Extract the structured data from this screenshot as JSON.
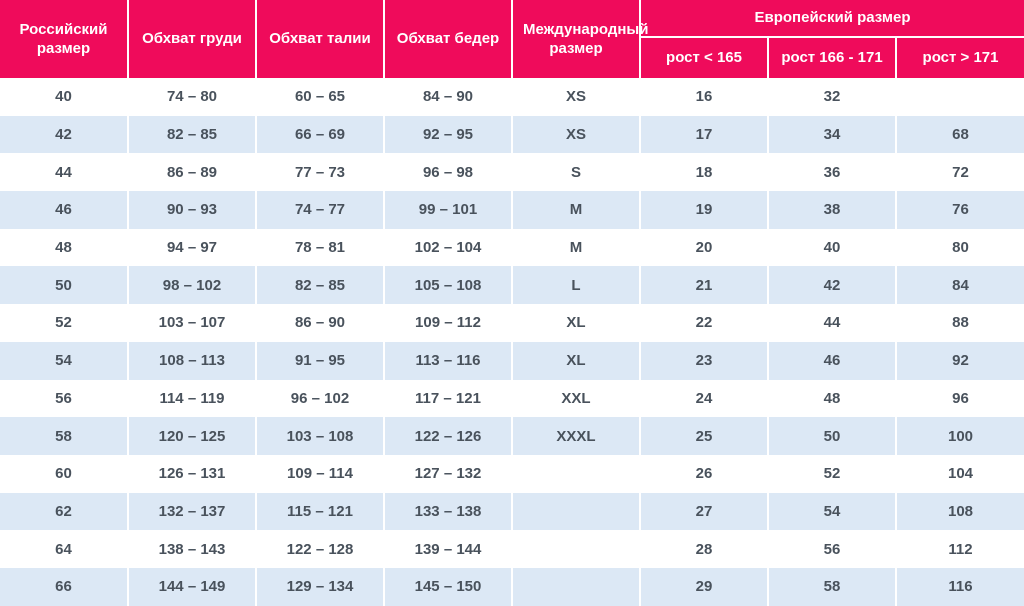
{
  "colors": {
    "header_bg": "#EF0B5B",
    "header_text": "#FFFFFF",
    "row_alt_bg": "#DCE8F5",
    "body_text": "#49525C",
    "separator": "#FFFFFF"
  },
  "table": {
    "headers": {
      "russian_size": "Российский размер",
      "chest": "Обхват груди",
      "waist": "Обхват талии",
      "hips": "Обхват бедер",
      "international_size": "Международный размер",
      "european_size": "Европейский размер",
      "height_lt_165": "рост < 165",
      "height_166_171": "рост 166 - 171",
      "height_gt_171": "рост > 171"
    },
    "rows": [
      {
        "russian_size": "40",
        "chest": "74 – 80",
        "waist": "60 – 65",
        "hips": "84 – 90",
        "international_size": "XS",
        "height_lt_165": "16",
        "height_166_171": "32",
        "height_gt_171": ""
      },
      {
        "russian_size": "42",
        "chest": "82 – 85",
        "waist": "66 – 69",
        "hips": "92 – 95",
        "international_size": "XS",
        "height_lt_165": "17",
        "height_166_171": "34",
        "height_gt_171": "68"
      },
      {
        "russian_size": "44",
        "chest": "86 – 89",
        "waist": "77 – 73",
        "hips": "96 – 98",
        "international_size": "S",
        "height_lt_165": "18",
        "height_166_171": "36",
        "height_gt_171": "72"
      },
      {
        "russian_size": "46",
        "chest": "90 – 93",
        "waist": "74 – 77",
        "hips": "99 – 101",
        "international_size": "M",
        "height_lt_165": "19",
        "height_166_171": "38",
        "height_gt_171": "76"
      },
      {
        "russian_size": "48",
        "chest": "94 – 97",
        "waist": "78 – 81",
        "hips": "102 – 104",
        "international_size": "M",
        "height_lt_165": "20",
        "height_166_171": "40",
        "height_gt_171": "80"
      },
      {
        "russian_size": "50",
        "chest": "98 – 102",
        "waist": "82 – 85",
        "hips": "105 – 108",
        "international_size": "L",
        "height_lt_165": "21",
        "height_166_171": "42",
        "height_gt_171": "84"
      },
      {
        "russian_size": "52",
        "chest": "103 – 107",
        "waist": "86 – 90",
        "hips": "109 – 112",
        "international_size": "XL",
        "height_lt_165": "22",
        "height_166_171": "44",
        "height_gt_171": "88"
      },
      {
        "russian_size": "54",
        "chest": "108 – 113",
        "waist": "91 – 95",
        "hips": "113 – 116",
        "international_size": "XL",
        "height_lt_165": "23",
        "height_166_171": "46",
        "height_gt_171": "92"
      },
      {
        "russian_size": "56",
        "chest": "114 – 119",
        "waist": "96 – 102",
        "hips": "117 – 121",
        "international_size": "XXL",
        "height_lt_165": "24",
        "height_166_171": "48",
        "height_gt_171": "96"
      },
      {
        "russian_size": "58",
        "chest": "120 – 125",
        "waist": "103 – 108",
        "hips": "122 – 126",
        "international_size": "XXXL",
        "height_lt_165": "25",
        "height_166_171": "50",
        "height_gt_171": "100"
      },
      {
        "russian_size": "60",
        "chest": "126 – 131",
        "waist": "109 – 114",
        "hips": "127 – 132",
        "international_size": "",
        "height_lt_165": "26",
        "height_166_171": "52",
        "height_gt_171": "104"
      },
      {
        "russian_size": "62",
        "chest": "132 – 137",
        "waist": "115 – 121",
        "hips": "133 – 138",
        "international_size": "",
        "height_lt_165": "27",
        "height_166_171": "54",
        "height_gt_171": "108"
      },
      {
        "russian_size": "64",
        "chest": "138 – 143",
        "waist": "122 – 128",
        "hips": "139 – 144",
        "international_size": "",
        "height_lt_165": "28",
        "height_166_171": "56",
        "height_gt_171": "112"
      },
      {
        "russian_size": "66",
        "chest": "144 – 149",
        "waist": "129 – 134",
        "hips": "145 – 150",
        "international_size": "",
        "height_lt_165": "29",
        "height_166_171": "58",
        "height_gt_171": "116"
      }
    ]
  }
}
